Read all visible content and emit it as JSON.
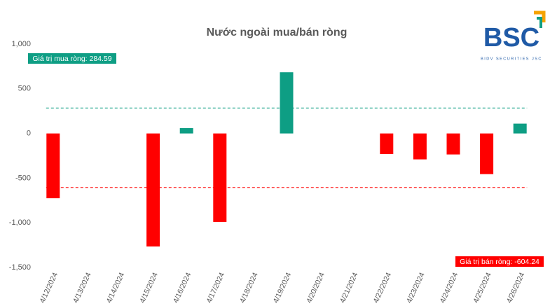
{
  "chart_data": {
    "type": "bar",
    "title": "Nước ngoài mua/bán ròng",
    "categories": [
      "4/12/2024",
      "4/13/2024",
      "4/14/2024",
      "4/15/2024",
      "4/16/2024",
      "4/17/2024",
      "4/18/2024",
      "4/19/2024",
      "4/20/2024",
      "4/21/2024",
      "4/22/2024",
      "4/23/2024",
      "4/24/2024",
      "4/25/2024",
      "4/26/2024"
    ],
    "values": [
      -725,
      null,
      null,
      -1265,
      60,
      -990,
      null,
      685,
      null,
      null,
      -230,
      -290,
      -235,
      -455,
      110
    ],
    "positive_color": "#0e9e84",
    "negative_color": "#ff0000",
    "ylim": [
      -1500,
      1000
    ],
    "yticks": [
      {
        "value": -1500,
        "label": "-1,500"
      },
      {
        "value": -1000,
        "label": "-1,000"
      },
      -500,
      0,
      500,
      {
        "value": 1000,
        "label": "1,000"
      }
    ],
    "grid": false,
    "reference_lines": [
      {
        "value": 284.59,
        "label": "Giá trị mua ròng: 284.59",
        "color": "#0e9e84"
      },
      {
        "value": -604.24,
        "label": "Giá trị bán ròng: -604.24",
        "color": "#ff0000"
      }
    ],
    "logo": {
      "text": "BSC",
      "subtext": "BIDV SECURITIES JSC"
    }
  }
}
